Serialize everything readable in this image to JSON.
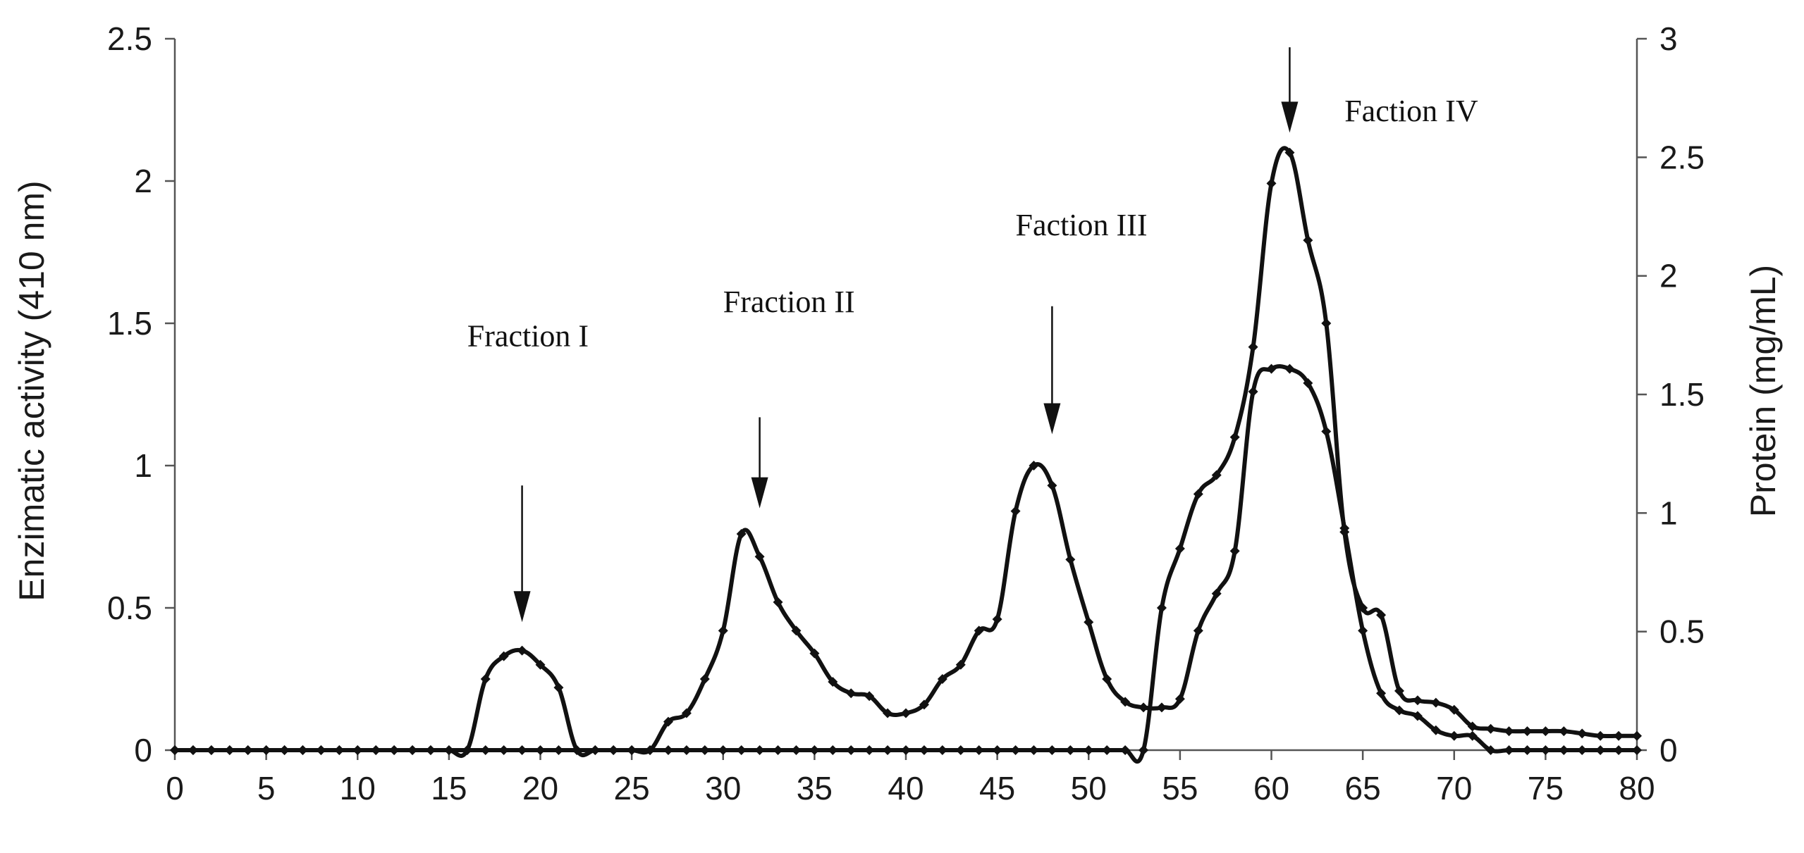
{
  "chart_data": {
    "type": "line",
    "title": "",
    "xlabel": "",
    "ylabel": "Enzimatic activity  (410 nm)",
    "y2label": "Protein  (mg/mL)",
    "xlim": [
      0,
      80
    ],
    "ylim": [
      0,
      2.5
    ],
    "y2lim": [
      0,
      3
    ],
    "x_ticks": [
      "0",
      "5",
      "10",
      "15",
      "20",
      "25",
      "30",
      "35",
      "40",
      "45",
      "50",
      "55",
      "60",
      "65",
      "70",
      "75",
      "80"
    ],
    "y_ticks": [
      "0",
      "0.5",
      "1",
      "1.5",
      "2",
      "2.5"
    ],
    "y2_ticks": [
      "0",
      "0.5",
      "1",
      "1.5",
      "2",
      "2.5",
      "3"
    ],
    "grid": false,
    "legend": "none",
    "line_color": "#111111",
    "series": [
      {
        "axis": "left",
        "x": [
          0,
          1,
          2,
          3,
          4,
          5,
          6,
          7,
          8,
          9,
          10,
          11,
          12,
          13,
          14,
          15,
          16,
          17,
          18,
          19,
          20,
          21,
          22,
          23,
          24,
          25,
          26,
          27,
          28,
          29,
          30,
          31,
          32,
          33,
          34,
          35,
          36,
          37,
          38,
          39,
          40,
          41,
          42,
          43,
          44,
          45,
          46,
          47,
          48,
          49,
          50,
          51,
          52,
          53,
          54,
          55,
          56,
          57,
          58,
          59,
          60,
          61,
          62,
          63,
          64,
          65,
          66,
          67,
          68,
          69,
          70,
          71,
          72,
          73,
          74,
          75,
          76,
          77,
          78,
          79,
          80
        ],
        "y": [
          0,
          0,
          0,
          0,
          0,
          0,
          0,
          0,
          0,
          0,
          0,
          0,
          0,
          0,
          0,
          0,
          0,
          0.25,
          0.33,
          0.35,
          0.3,
          0.22,
          0,
          0,
          0,
          0,
          0,
          0.1,
          0.13,
          0.25,
          0.42,
          0.76,
          0.68,
          0.52,
          0.42,
          0.34,
          0.24,
          0.2,
          0.19,
          0.13,
          0.13,
          0.16,
          0.25,
          0.3,
          0.42,
          0.46,
          0.84,
          1.0,
          0.93,
          0.67,
          0.45,
          0.25,
          0.17,
          0.15,
          0.15,
          0.18,
          0.42,
          0.55,
          0.7,
          1.26,
          1.34,
          1.34,
          1.29,
          1.12,
          0.78,
          0.42,
          0.2,
          0.14,
          0.12,
          0.07,
          0.05,
          0.05,
          0.0,
          0,
          0,
          0,
          0,
          0,
          0,
          0,
          0
        ]
      },
      {
        "axis": "right",
        "x": [
          0,
          1,
          2,
          3,
          4,
          5,
          6,
          7,
          8,
          9,
          10,
          11,
          12,
          13,
          14,
          15,
          16,
          17,
          18,
          19,
          20,
          21,
          22,
          23,
          24,
          25,
          26,
          27,
          28,
          29,
          30,
          31,
          32,
          33,
          34,
          35,
          36,
          37,
          38,
          39,
          40,
          41,
          42,
          43,
          44,
          45,
          46,
          47,
          48,
          49,
          50,
          51,
          52,
          53,
          54,
          55,
          56,
          57,
          58,
          59,
          60,
          61,
          62,
          63,
          64,
          65,
          66,
          67,
          68,
          69,
          70,
          71,
          72,
          73,
          74,
          75,
          76,
          77,
          78,
          79,
          80
        ],
        "y": [
          0,
          0,
          0,
          0,
          0,
          0,
          0,
          0,
          0,
          0,
          0,
          0,
          0,
          0,
          0,
          0,
          0,
          0,
          0,
          0,
          0,
          0,
          0,
          0,
          0,
          0,
          0,
          0,
          0,
          0,
          0,
          0,
          0,
          0,
          0,
          0,
          0,
          0,
          0,
          0,
          0,
          0,
          0,
          0,
          0,
          0,
          0,
          0,
          0,
          0,
          0,
          0,
          0,
          0,
          0.6,
          0.85,
          1.08,
          1.16,
          1.32,
          1.7,
          2.39,
          2.52,
          2.15,
          1.8,
          0.92,
          0.6,
          0.57,
          0.25,
          0.21,
          0.2,
          0.17,
          0.1,
          0.09,
          0.08,
          0.08,
          0.08,
          0.08,
          0.07,
          0.06,
          0.06,
          0.06
        ]
      }
    ],
    "annotations": [
      {
        "text": "Fraction I",
        "x": 16.0,
        "y": 1.42
      },
      {
        "text": "Fraction II",
        "x": 30.0,
        "y": 1.54
      },
      {
        "text": "Faction III",
        "x": 46.0,
        "y": 1.81
      },
      {
        "text": "Faction IV",
        "x": 64.0,
        "y": 2.21
      }
    ],
    "arrows": [
      {
        "x": 19,
        "from": 0.93,
        "to": 0.45
      },
      {
        "x": 32,
        "from": 1.17,
        "to": 0.85
      },
      {
        "x": 48,
        "from": 1.56,
        "to": 1.11
      },
      {
        "x": 61,
        "from": 2.47,
        "to": 2.17
      }
    ]
  }
}
